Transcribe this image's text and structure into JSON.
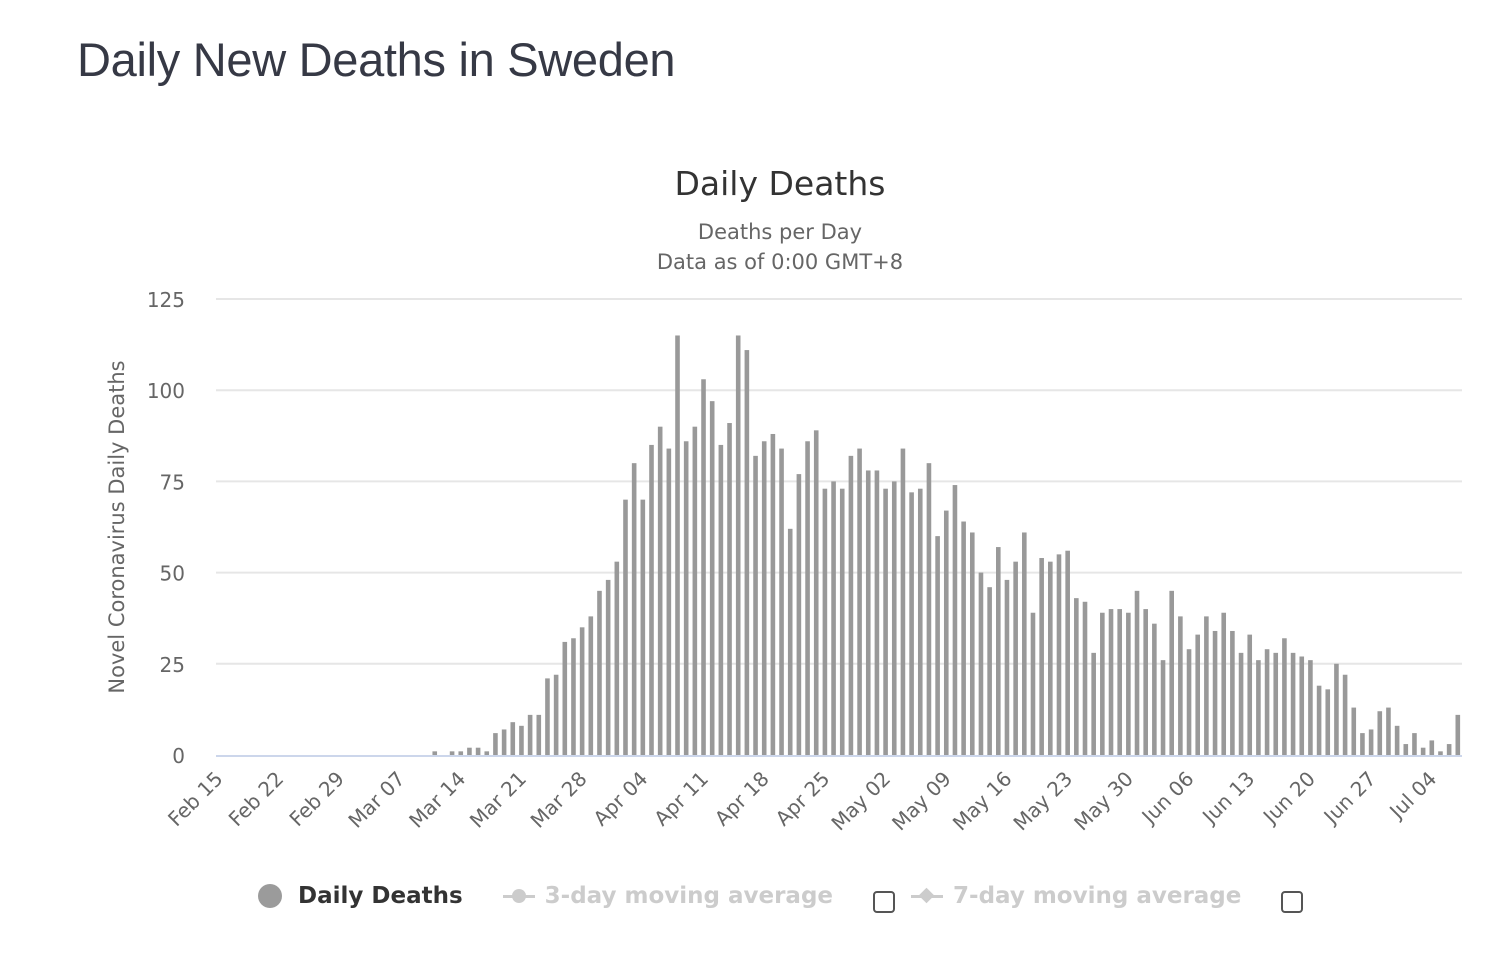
{
  "page": {
    "title": "Daily New Deaths in Sweden"
  },
  "chart_data": {
    "type": "bar",
    "title": "Daily Deaths",
    "subtitle_lines": [
      "Deaths per Day",
      "Data as of 0:00 GMT+8"
    ],
    "xlabel": "",
    "ylabel": "Novel Coronavirus Daily Deaths",
    "ylim": [
      0,
      125
    ],
    "yticks": [
      0,
      25,
      50,
      75,
      100,
      125
    ],
    "grid": true,
    "bar_color": "#999999",
    "start_date": "Feb 15",
    "xtick_labels": [
      "Feb 15",
      "Feb 22",
      "Feb 29",
      "Mar 07",
      "Mar 14",
      "Mar 21",
      "Mar 28",
      "Apr 04",
      "Apr 11",
      "Apr 18",
      "Apr 25",
      "May 02",
      "May 09",
      "May 16",
      "May 23",
      "May 30",
      "Jun 06",
      "Jun 13",
      "Jun 20",
      "Jun 27",
      "Jul 04"
    ],
    "xtick_every_days": 7,
    "categories": [
      "Feb 15",
      "Feb 16",
      "Feb 17",
      "Feb 18",
      "Feb 19",
      "Feb 20",
      "Feb 21",
      "Feb 22",
      "Feb 23",
      "Feb 24",
      "Feb 25",
      "Feb 26",
      "Feb 27",
      "Feb 28",
      "Feb 29",
      "Mar 01",
      "Mar 02",
      "Mar 03",
      "Mar 04",
      "Mar 05",
      "Mar 06",
      "Mar 07",
      "Mar 08",
      "Mar 09",
      "Mar 10",
      "Mar 11",
      "Mar 12",
      "Mar 13",
      "Mar 14",
      "Mar 15",
      "Mar 16",
      "Mar 17",
      "Mar 18",
      "Mar 19",
      "Mar 20",
      "Mar 21",
      "Mar 22",
      "Mar 23",
      "Mar 24",
      "Mar 25",
      "Mar 26",
      "Mar 27",
      "Mar 28",
      "Mar 29",
      "Mar 30",
      "Mar 31",
      "Apr 01",
      "Apr 02",
      "Apr 03",
      "Apr 04",
      "Apr 05",
      "Apr 06",
      "Apr 07",
      "Apr 08",
      "Apr 09",
      "Apr 10",
      "Apr 11",
      "Apr 12",
      "Apr 13",
      "Apr 14",
      "Apr 15",
      "Apr 16",
      "Apr 17",
      "Apr 18",
      "Apr 19",
      "Apr 20",
      "Apr 21",
      "Apr 22",
      "Apr 23",
      "Apr 24",
      "Apr 25",
      "Apr 26",
      "Apr 27",
      "Apr 28",
      "Apr 29",
      "Apr 30",
      "May 01",
      "May 02",
      "May 03",
      "May 04",
      "May 05",
      "May 06",
      "May 07",
      "May 08",
      "May 09",
      "May 10",
      "May 11",
      "May 12",
      "May 13",
      "May 14",
      "May 15",
      "May 16",
      "May 17",
      "May 18",
      "May 19",
      "May 20",
      "May 21",
      "May 22",
      "May 23",
      "May 24",
      "May 25",
      "May 26",
      "May 27",
      "May 28",
      "May 29",
      "May 30",
      "May 31",
      "Jun 01",
      "Jun 02",
      "Jun 03",
      "Jun 04",
      "Jun 05",
      "Jun 06",
      "Jun 07",
      "Jun 08",
      "Jun 09",
      "Jun 10",
      "Jun 11",
      "Jun 12",
      "Jun 13",
      "Jun 14",
      "Jun 15",
      "Jun 16",
      "Jun 17",
      "Jun 18",
      "Jun 19",
      "Jun 20",
      "Jun 21",
      "Jun 22",
      "Jun 23",
      "Jun 24",
      "Jun 25",
      "Jun 26",
      "Jun 27",
      "Jun 28",
      "Jun 29",
      "Jun 30",
      "Jul 01",
      "Jul 02",
      "Jul 03",
      "Jul 04",
      "Jul 05",
      "Jul 06",
      "Jul 07"
    ],
    "series": [
      {
        "name": "Daily Deaths",
        "values": [
          0,
          0,
          0,
          0,
          0,
          0,
          0,
          0,
          0,
          0,
          0,
          0,
          0,
          0,
          0,
          0,
          0,
          0,
          0,
          0,
          0,
          0,
          0,
          0,
          0,
          1,
          0,
          1,
          1,
          2,
          2,
          1,
          6,
          7,
          9,
          8,
          11,
          11,
          21,
          22,
          31,
          32,
          35,
          38,
          45,
          48,
          53,
          70,
          80,
          70,
          85,
          90,
          84,
          115,
          86,
          90,
          103,
          97,
          85,
          91,
          115,
          111,
          82,
          86,
          88,
          84,
          62,
          77,
          86,
          89,
          73,
          75,
          73,
          82,
          84,
          78,
          78,
          73,
          75,
          84,
          72,
          73,
          80,
          60,
          67,
          74,
          64,
          61,
          50,
          46,
          57,
          48,
          53,
          61,
          39,
          54,
          53,
          55,
          56,
          43,
          42,
          28,
          39,
          40,
          40,
          39,
          45,
          40,
          36,
          26,
          45,
          38,
          29,
          33,
          38,
          34,
          39,
          34,
          28,
          33,
          26,
          29,
          28,
          32,
          28,
          27,
          26,
          19,
          18,
          25,
          22,
          13,
          6,
          7,
          12,
          13,
          8,
          3,
          6,
          2,
          4,
          1,
          3,
          11
        ]
      }
    ],
    "legend": {
      "position": "bottom",
      "items": [
        {
          "label": "Daily Deaths",
          "active": true,
          "symbol": "circle"
        },
        {
          "label": "3-day moving average",
          "active": false,
          "symbol": "line-circle",
          "checkbox": false
        },
        {
          "label": "7-day moving average",
          "active": false,
          "symbol": "line-diamond",
          "checkbox": false
        }
      ]
    }
  }
}
